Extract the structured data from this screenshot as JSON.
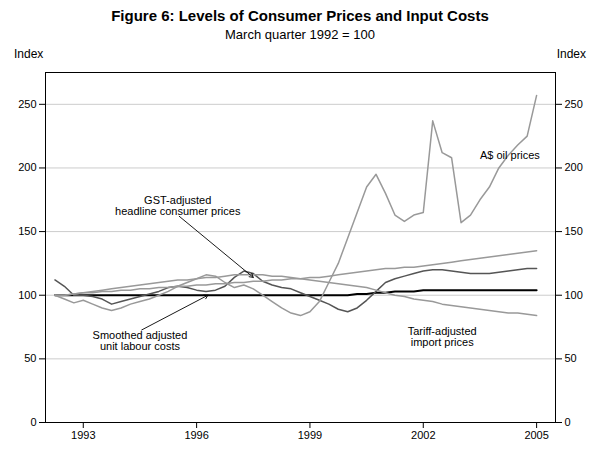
{
  "chart_data": {
    "type": "line",
    "title": "Figure 6: Levels of Consumer Prices and Input Costs",
    "subtitle": "March quarter 1992 = 100",
    "ylabel": "Index",
    "y2label": "Index",
    "xlim": [
      1992.0,
      2005.5
    ],
    "xticks": [
      1993,
      1996,
      1999,
      2002,
      2005
    ],
    "ylim": [
      0,
      275
    ],
    "yticks": [
      0,
      50,
      100,
      150,
      200,
      250
    ],
    "y2lim": [
      0,
      275
    ],
    "y2ticks": [
      0,
      50,
      100,
      150,
      200,
      250
    ],
    "grid": true,
    "x": [
      1992.25,
      1992.5,
      1992.75,
      1993.0,
      1993.25,
      1993.5,
      1993.75,
      1994.0,
      1994.25,
      1994.5,
      1994.75,
      1995.0,
      1995.25,
      1995.5,
      1995.75,
      1996.0,
      1996.25,
      1996.5,
      1996.75,
      1997.0,
      1997.25,
      1997.5,
      1997.75,
      1998.0,
      1998.25,
      1998.5,
      1998.75,
      1999.0,
      1999.25,
      1999.5,
      1999.75,
      2000.0,
      2000.25,
      2000.5,
      2000.75,
      2001.0,
      2001.25,
      2001.5,
      2001.75,
      2002.0,
      2002.25,
      2002.5,
      2002.75,
      2003.0,
      2003.25,
      2003.5,
      2003.75,
      2004.0,
      2004.25,
      2004.5,
      2004.75,
      2005.0
    ],
    "series": [
      {
        "color": "#000000",
        "values": [
          100,
          100,
          100,
          100,
          100,
          100,
          100,
          100,
          100,
          100,
          100,
          100,
          100,
          100,
          100,
          100,
          100,
          100,
          100,
          100,
          100,
          100,
          100,
          100,
          100,
          100,
          100,
          100,
          100,
          100,
          100,
          100,
          101,
          101,
          102,
          102,
          103,
          103,
          103,
          104,
          104,
          104,
          104,
          104,
          104,
          104,
          104,
          104,
          104,
          104,
          104,
          104
        ]
      },
      {
        "color": "#555555",
        "values": [
          112,
          107,
          100,
          100,
          99,
          97,
          93,
          95,
          97,
          99,
          101,
          103,
          106,
          107,
          106,
          104,
          103,
          104,
          107,
          114,
          119,
          117,
          111,
          108,
          106,
          105,
          102,
          99,
          96,
          93,
          89,
          87,
          90,
          96,
          103,
          110,
          113,
          115,
          117,
          119,
          120,
          120,
          119,
          118,
          117,
          117,
          117,
          118,
          119,
          120,
          121,
          121
        ]
      },
      {
        "color": "#999999",
        "values": [
          100,
          97,
          94,
          96,
          93,
          90,
          88,
          90,
          93,
          95,
          97,
          100,
          103,
          107,
          110,
          113,
          116,
          115,
          110,
          106,
          108,
          105,
          100,
          95,
          90,
          86,
          84,
          87,
          95,
          110,
          125,
          145,
          165,
          185,
          195,
          180,
          163,
          158,
          163,
          165,
          237,
          212,
          208,
          157,
          163,
          175,
          185,
          200,
          210,
          218,
          225,
          257
        ]
      },
      {
        "color": "#999999",
        "values": [
          100,
          100,
          101,
          102,
          102,
          103,
          103,
          104,
          104,
          105,
          105,
          106,
          106,
          107,
          107,
          108,
          108,
          109,
          109,
          110,
          110,
          111,
          111,
          112,
          112,
          113,
          113,
          114,
          114,
          115,
          116,
          117,
          118,
          119,
          120,
          121,
          121,
          122,
          122,
          123,
          124,
          125,
          126,
          127,
          128,
          129,
          130,
          131,
          132,
          133,
          134,
          135
        ]
      },
      {
        "color": "#999999",
        "values": [
          100,
          100,
          101,
          102,
          103,
          104,
          105,
          106,
          107,
          108,
          109,
          110,
          111,
          112,
          112,
          113,
          114,
          114,
          115,
          116,
          116,
          116,
          116,
          115,
          115,
          114,
          113,
          112,
          111,
          110,
          109,
          108,
          107,
          106,
          104,
          102,
          100,
          99,
          97,
          96,
          95,
          93,
          92,
          91,
          90,
          89,
          88,
          87,
          86,
          86,
          85,
          84
        ]
      }
    ],
    "annotations": [
      {
        "text": "A$ oil prices",
        "x": 2003.5,
        "y": 210
      },
      {
        "text": "GST-adjusted\nheadline consumer prices",
        "x": 1995.5,
        "y": 163,
        "arrow": [
          1997.5,
          114
        ]
      },
      {
        "text": "Smoothed adjusted\nunit labour costs",
        "x": 1994.5,
        "y": 72,
        "arrow": [
          1996.3,
          100
        ]
      },
      {
        "text": "Tariff-adjusted\nimport prices",
        "x": 2002.5,
        "y": 75
      }
    ]
  }
}
